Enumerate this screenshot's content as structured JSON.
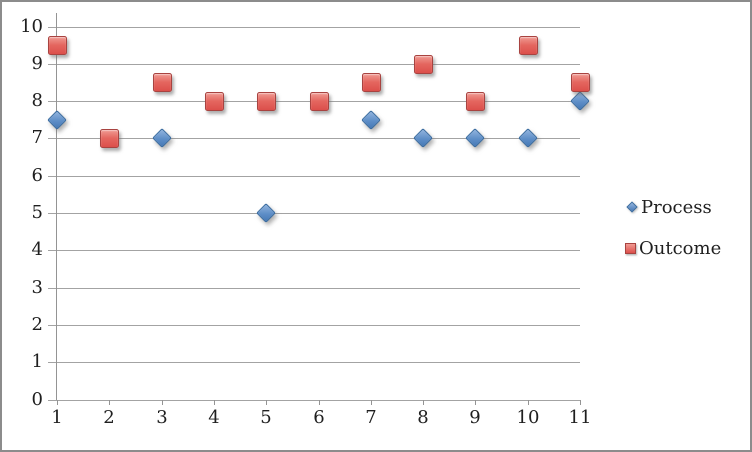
{
  "chart_data": {
    "type": "scatter",
    "title": "",
    "xlabel": "",
    "ylabel": "",
    "x": [
      1,
      2,
      3,
      4,
      5,
      6,
      7,
      8,
      9,
      10,
      11
    ],
    "x_tick_labels": [
      "1",
      "2",
      "3",
      "4",
      "5",
      "6",
      "7",
      "8",
      "9",
      "10",
      "11"
    ],
    "y_tick_labels": [
      "0",
      "1",
      "2",
      "3",
      "4",
      "5",
      "6",
      "7",
      "8",
      "9",
      "10"
    ],
    "xlim": [
      1,
      11
    ],
    "ylim": [
      0,
      10
    ],
    "y_major_unit": 1,
    "grid": true,
    "legend_position": "right",
    "series": [
      {
        "name": "Process",
        "marker": "diamond",
        "color": "#4F81BD",
        "values": [
          7.5,
          null,
          7,
          null,
          5,
          null,
          7.5,
          7,
          7,
          7,
          8
        ]
      },
      {
        "name": "Outcome",
        "marker": "square",
        "color": "#C0504D",
        "values": [
          9.5,
          7,
          8.5,
          8,
          8,
          8,
          8.5,
          9,
          8,
          9.5,
          8.5
        ]
      }
    ]
  },
  "colors": {
    "gridline": "#A3A3A3",
    "axis": "#949494",
    "frame_border": "#8C8C8C",
    "text": "#1F1F1F",
    "process_fill": "#5E8EC7",
    "process_border": "#3A6CA0",
    "outcome_fill": "#E0615C",
    "outcome_border": "#A84340",
    "background": "#FFFFFF"
  }
}
